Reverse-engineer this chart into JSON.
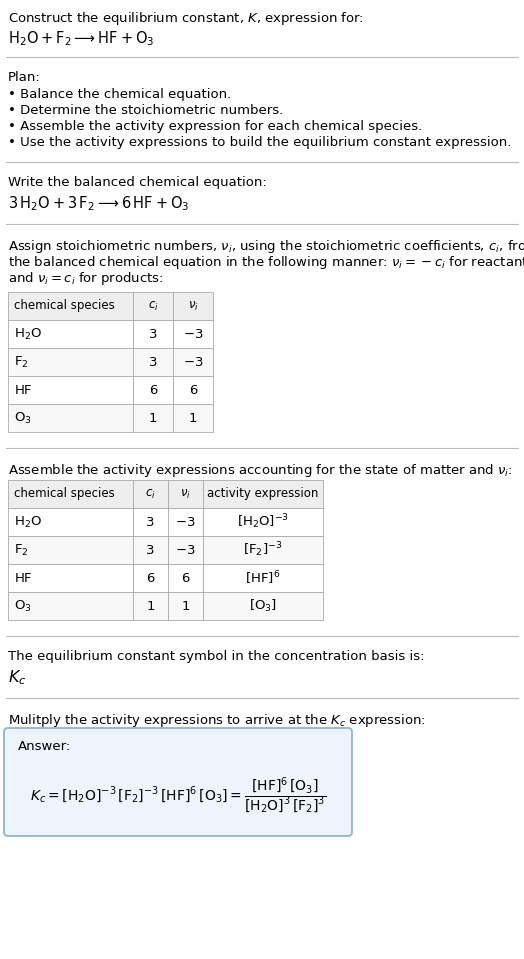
{
  "title_line1": "Construct the equilibrium constant, $K$, expression for:",
  "title_line2": "$\\mathrm{H_2O + F_2 \\longrightarrow HF + O_3}$",
  "plan_header": "Plan:",
  "plan_bullets": [
    "• Balance the chemical equation.",
    "• Determine the stoichiometric numbers.",
    "• Assemble the activity expression for each chemical species.",
    "• Use the activity expressions to build the equilibrium constant expression."
  ],
  "balanced_header": "Write the balanced chemical equation:",
  "balanced_eq": "$\\mathrm{3\\,H_2O + 3\\,F_2 \\longrightarrow 6\\,HF + O_3}$",
  "stoich_intro_lines": [
    "Assign stoichiometric numbers, $\\nu_i$, using the stoichiometric coefficients, $c_i$, from",
    "the balanced chemical equation in the following manner: $\\nu_i = -c_i$ for reactants",
    "and $\\nu_i = c_i$ for products:"
  ],
  "table1_headers": [
    "chemical species",
    "$c_i$",
    "$\\nu_i$"
  ],
  "table1_rows": [
    [
      "$\\mathrm{H_2O}$",
      "3",
      "$-3$"
    ],
    [
      "$\\mathrm{F_2}$",
      "3",
      "$-3$"
    ],
    [
      "$\\mathrm{HF}$",
      "6",
      "6"
    ],
    [
      "$\\mathrm{O_3}$",
      "1",
      "1"
    ]
  ],
  "activity_intro": "Assemble the activity expressions accounting for the state of matter and $\\nu_i$:",
  "table2_headers": [
    "chemical species",
    "$c_i$",
    "$\\nu_i$",
    "activity expression"
  ],
  "table2_rows": [
    [
      "$\\mathrm{H_2O}$",
      "3",
      "$-3$",
      "$[\\mathrm{H_2O}]^{-3}$"
    ],
    [
      "$\\mathrm{F_2}$",
      "3",
      "$-3$",
      "$[\\mathrm{F_2}]^{-3}$"
    ],
    [
      "$\\mathrm{HF}$",
      "6",
      "6",
      "$[\\mathrm{HF}]^6$"
    ],
    [
      "$\\mathrm{O_3}$",
      "1",
      "1",
      "$[\\mathrm{O_3}]$"
    ]
  ],
  "kc_symbol_text": "The equilibrium constant symbol in the concentration basis is:",
  "kc_symbol": "$K_c$",
  "multiply_text": "Mulitply the activity expressions to arrive at the $K_c$ expression:",
  "answer_label": "Answer:",
  "answer_kc_expr": "$K_c = [\\mathrm{H_2O}]^{-3}\\,[\\mathrm{F_2}]^{-3}\\,[\\mathrm{HF}]^6\\,[\\mathrm{O_3}] = \\dfrac{[\\mathrm{HF}]^6\\,[\\mathrm{O_3}]}{[\\mathrm{H_2O}]^3\\,[\\mathrm{F_2}]^3}$",
  "bg_color": "#ffffff",
  "text_color": "#000000",
  "table_header_bg": "#eeeeee",
  "table_row_bg_even": "#ffffff",
  "table_row_bg_odd": "#f8f8f8",
  "answer_box_bg": "#eef4fb",
  "answer_box_border": "#90b4d4",
  "separator_color": "#bbbbbb",
  "fs": 9.5,
  "fs_math": 10.5
}
